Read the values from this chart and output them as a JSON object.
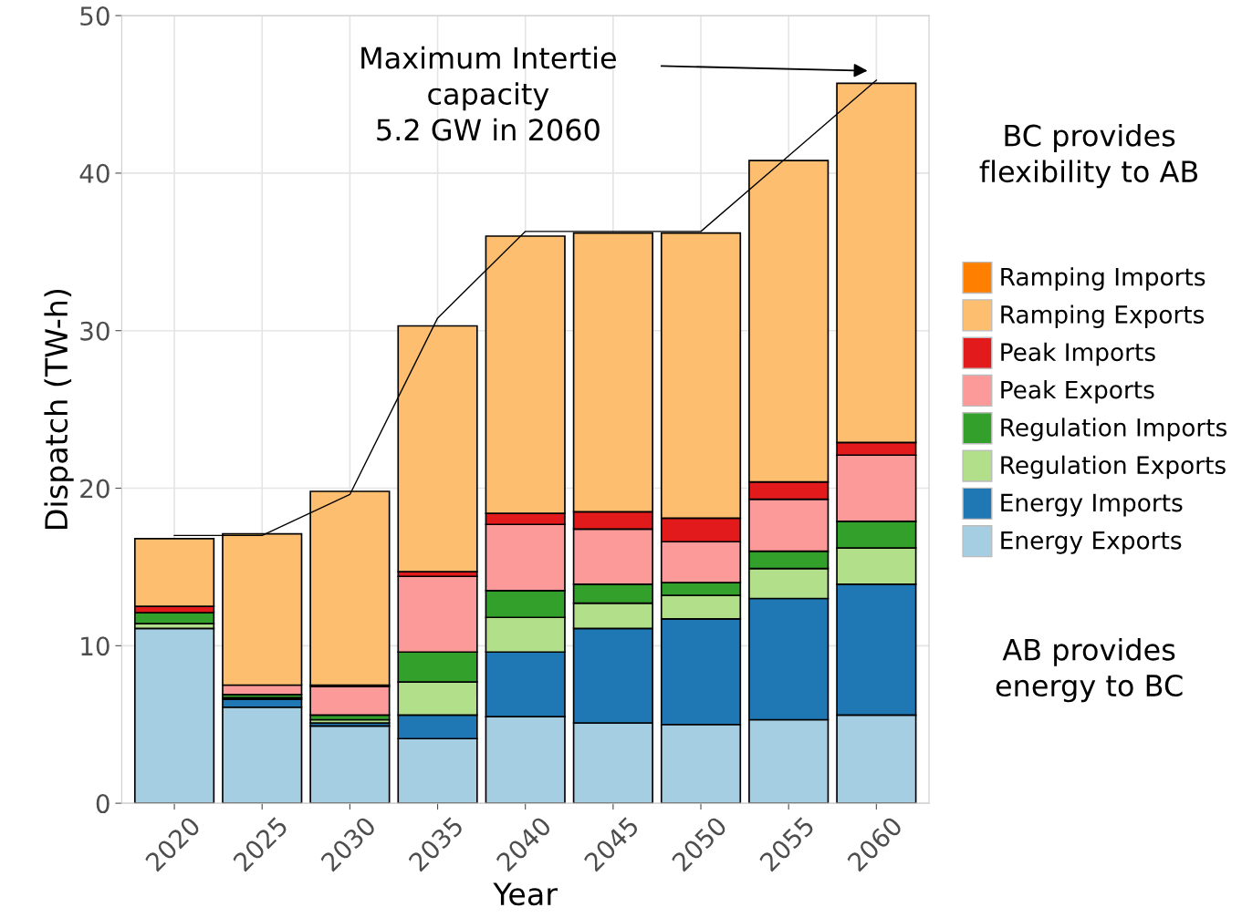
{
  "chart_data": {
    "type": "bar",
    "stacked": true,
    "xlabel": "Year",
    "ylabel": "Dispatch (TW-h)",
    "categories": [
      "2020",
      "2025",
      "2030",
      "2035",
      "2040",
      "2045",
      "2050",
      "2055",
      "2060"
    ],
    "series": [
      {
        "name": "Energy Exports",
        "color": "#a6cee3",
        "values": [
          11.1,
          6.1,
          4.9,
          4.1,
          5.5,
          5.1,
          5.0,
          5.3,
          5.6
        ]
      },
      {
        "name": "Energy Imports",
        "color": "#1f78b4",
        "values": [
          null,
          0.5,
          0.2,
          1.5,
          4.1,
          6.0,
          6.7,
          7.7,
          8.3
        ]
      },
      {
        "name": "Regulation Exports",
        "color": "#b2df8a",
        "values": [
          0.3,
          0.1,
          0.2,
          2.1,
          2.2,
          1.6,
          1.5,
          1.9,
          2.3
        ]
      },
      {
        "name": "Regulation Imports",
        "color": "#33a02c",
        "values": [
          0.7,
          0.2,
          0.3,
          1.9,
          1.7,
          1.2,
          0.8,
          1.1,
          1.7
        ]
      },
      {
        "name": "Peak Exports",
        "color": "#fb9a99",
        "values": [
          null,
          0.6,
          1.8,
          4.8,
          4.2,
          3.5,
          2.6,
          3.3,
          4.2
        ]
      },
      {
        "name": "Peak Imports",
        "color": "#e31a1c",
        "values": [
          0.4,
          null,
          0.1,
          0.3,
          0.7,
          1.1,
          1.5,
          1.1,
          0.8
        ]
      },
      {
        "name": "Ramping Exports",
        "color": "#fdbf6f",
        "values": [
          4.3,
          9.6,
          12.3,
          15.6,
          17.6,
          17.7,
          18.1,
          20.4,
          22.8
        ]
      },
      {
        "name": "Ramping Imports",
        "color": "#ff7f00",
        "values": [
          null,
          null,
          null,
          null,
          null,
          null,
          null,
          null,
          null
        ]
      },
      {
        "type": "line",
        "color": "#000000",
        "values": [
          17.0,
          17.0,
          19.6,
          30.8,
          36.3,
          36.3,
          36.3,
          41.1,
          45.9
        ]
      }
    ],
    "ylim": [
      0,
      50
    ],
    "yticks": [
      0,
      10,
      20,
      30,
      40,
      50
    ],
    "grid": true,
    "legend": "right",
    "annotations": [
      "Maximum Intertie\ncapacity\n5.2 GW in 2060",
      "BC provides\nflexibility to AB",
      "AB provides\nenergy to BC"
    ]
  }
}
